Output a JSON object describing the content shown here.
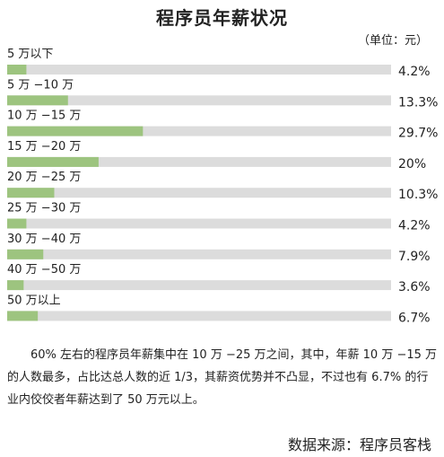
{
  "title": "程序员年薪状况",
  "unit": "（单位：元）",
  "chart_data": {
    "type": "bar",
    "orientation": "horizontal",
    "title": "程序员年薪状况",
    "categories": [
      "5 万以下",
      "5 万 −10 万",
      "10 万 −15 万",
      "15 万 −20 万",
      "20 万 −25 万",
      "25 万 −30 万",
      "30 万 −40 万",
      "40 万 −50 万",
      "50 万以上"
    ],
    "values": [
      4.2,
      13.3,
      29.7,
      20,
      10.3,
      4.2,
      7.9,
      3.6,
      6.7
    ],
    "value_labels": [
      "4.2%",
      "13.3%",
      "29.7%",
      "20%",
      "10.3%",
      "4.2%",
      "7.9%",
      "3.6%",
      "6.7%"
    ],
    "xlim": [
      0,
      84
    ],
    "bar_color": "#9dc47f",
    "track_color": "#dcdcdc"
  },
  "note": "60% 左右的程序员年薪集中在 10 万 −25 万之间，其中，年薪 10 万 −15 万的人数最多，占比达总人数的近 1/3，其薪资优势并不凸显，不过也有 6.7% 的行业内佼佼者年薪达到了 50 万元以上。",
  "source": "数据来源：程序员客栈"
}
